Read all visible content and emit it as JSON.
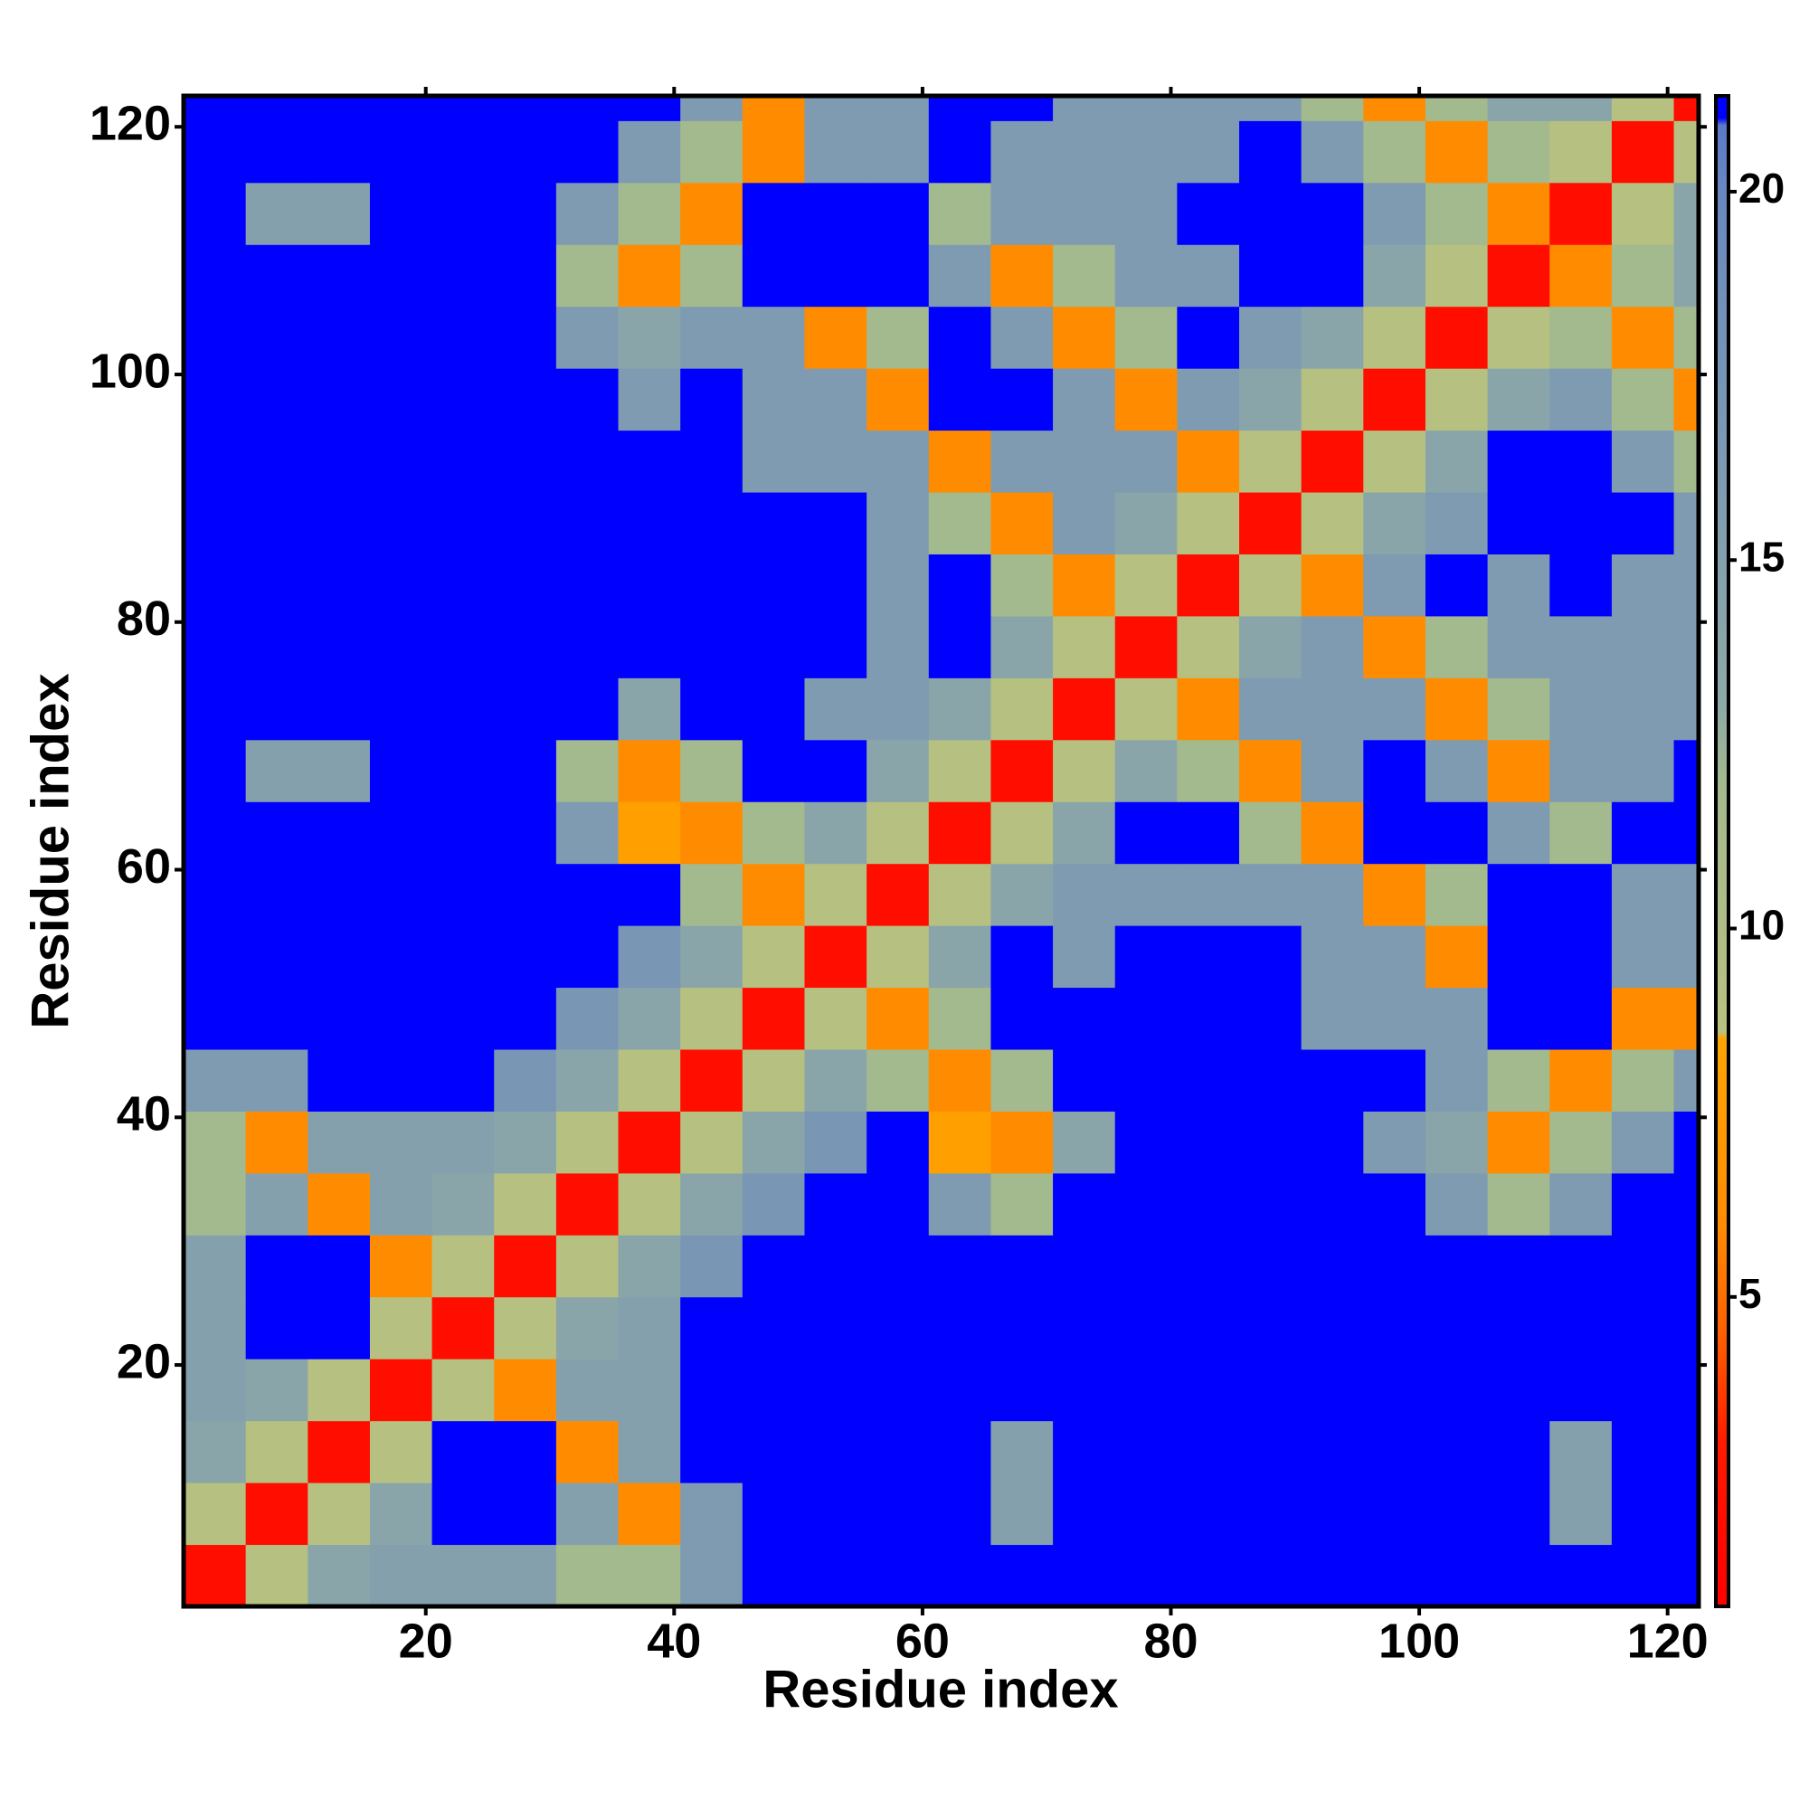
{
  "chart_data": {
    "type": "heatmap",
    "xlabel": "Residue index",
    "ylabel": "Residue index",
    "xlim": [
      0.5,
      122.5
    ],
    "ylim": [
      0.5,
      122.5
    ],
    "xticks": [
      20,
      40,
      60,
      80,
      100,
      120
    ],
    "yticks": [
      20,
      40,
      60,
      80,
      100,
      120
    ],
    "clim": [
      0.8,
      21.3
    ],
    "cticks": [
      5,
      10,
      15,
      20
    ],
    "colorscale": [
      [
        0.8,
        "#ff0000"
      ],
      [
        3,
        "#ff1a00"
      ],
      [
        4.5,
        "#ff6000"
      ],
      [
        6,
        "#ff8c00"
      ],
      [
        8.5,
        "#ffa500"
      ],
      [
        8.6,
        "#b9c27f"
      ],
      [
        12,
        "#a3b98e"
      ],
      [
        13,
        "#8eaaa6"
      ],
      [
        20,
        "#6a88c0"
      ],
      [
        20.9,
        "#5a7ac8"
      ],
      [
        21,
        "#0000ff"
      ]
    ],
    "x": [
      3,
      8,
      13,
      18,
      23,
      28,
      33,
      38,
      43,
      48,
      53,
      58,
      63,
      68,
      73,
      78,
      83,
      88,
      93,
      98,
      103,
      108,
      113,
      118,
      123
    ],
    "y": [
      3,
      8,
      13,
      18,
      23,
      28,
      33,
      38,
      43,
      48,
      53,
      58,
      63,
      68,
      73,
      78,
      83,
      88,
      93,
      98,
      103,
      108,
      113,
      118,
      123
    ],
    "values": [
      [
        2,
        9,
        14,
        15,
        15,
        15,
        12,
        12,
        16,
        21,
        21,
        21,
        21,
        21,
        21,
        21,
        21,
        21,
        21,
        21,
        21,
        21,
        21,
        21,
        21
      ],
      [
        9,
        2,
        9,
        14,
        21,
        21,
        15,
        6,
        16,
        21,
        21,
        21,
        21,
        15,
        21,
        21,
        21,
        21,
        21,
        21,
        21,
        21,
        15,
        21,
        21
      ],
      [
        14,
        9,
        2,
        9,
        21,
        21,
        6,
        15,
        21,
        21,
        21,
        21,
        21,
        15,
        21,
        21,
        21,
        21,
        21,
        21,
        21,
        21,
        15,
        21,
        21
      ],
      [
        15,
        14,
        9,
        2,
        9,
        6,
        15,
        15,
        21,
        21,
        21,
        21,
        21,
        21,
        21,
        21,
        21,
        21,
        21,
        21,
        21,
        21,
        21,
        21,
        21
      ],
      [
        15,
        21,
        21,
        9,
        2,
        9,
        14,
        15,
        21,
        21,
        21,
        21,
        21,
        21,
        21,
        21,
        21,
        21,
        21,
        21,
        21,
        21,
        21,
        21,
        21
      ],
      [
        15,
        21,
        21,
        6,
        9,
        2,
        9,
        14,
        17,
        21,
        21,
        21,
        21,
        21,
        21,
        21,
        21,
        21,
        21,
        21,
        21,
        21,
        21,
        21,
        21
      ],
      [
        12,
        15,
        6,
        15,
        14,
        9,
        2,
        9,
        14,
        17,
        21,
        21,
        16,
        12,
        21,
        21,
        21,
        21,
        21,
        21,
        16,
        12,
        16,
        21,
        21
      ],
      [
        12,
        6,
        15,
        15,
        15,
        14,
        9,
        2,
        9,
        14,
        17,
        21,
        8,
        6,
        14,
        21,
        21,
        21,
        21,
        16,
        14,
        6,
        12,
        16,
        21
      ],
      [
        16,
        16,
        21,
        21,
        21,
        17,
        14,
        9,
        2,
        9,
        14,
        12,
        6,
        12,
        21,
        21,
        21,
        21,
        21,
        21,
        16,
        12,
        6,
        12,
        16
      ],
      [
        21,
        21,
        21,
        21,
        21,
        21,
        17,
        14,
        9,
        2,
        9,
        6,
        12,
        21,
        21,
        21,
        21,
        21,
        16,
        16,
        16,
        21,
        21,
        6,
        6
      ],
      [
        21,
        21,
        21,
        21,
        21,
        21,
        21,
        17,
        14,
        9,
        2,
        9,
        14,
        21,
        16,
        21,
        21,
        21,
        16,
        16,
        6,
        21,
        21,
        16,
        16
      ],
      [
        21,
        21,
        21,
        21,
        21,
        21,
        21,
        21,
        12,
        6,
        9,
        2,
        9,
        14,
        16,
        16,
        16,
        16,
        16,
        6,
        12,
        21,
        21,
        16,
        16
      ],
      [
        21,
        21,
        21,
        21,
        21,
        21,
        16,
        8,
        6,
        12,
        14,
        9,
        2,
        9,
        14,
        21,
        21,
        12,
        6,
        21,
        21,
        16,
        12,
        21,
        21
      ],
      [
        21,
        15,
        15,
        21,
        21,
        21,
        12,
        6,
        12,
        21,
        21,
        14,
        9,
        2,
        9,
        14,
        12,
        6,
        16,
        21,
        16,
        6,
        16,
        16,
        21
      ],
      [
        21,
        21,
        21,
        21,
        21,
        21,
        21,
        14,
        21,
        21,
        16,
        16,
        14,
        9,
        2,
        9,
        6,
        16,
        16,
        16,
        6,
        12,
        16,
        16,
        16
      ],
      [
        21,
        21,
        21,
        21,
        21,
        21,
        21,
        21,
        21,
        21,
        21,
        16,
        21,
        14,
        9,
        2,
        9,
        14,
        16,
        6,
        12,
        16,
        16,
        16,
        16
      ],
      [
        21,
        21,
        21,
        21,
        21,
        21,
        21,
        21,
        21,
        21,
        21,
        16,
        21,
        12,
        6,
        9,
        2,
        9,
        6,
        16,
        21,
        16,
        21,
        16,
        16
      ],
      [
        21,
        21,
        21,
        21,
        21,
        21,
        21,
        21,
        21,
        21,
        21,
        16,
        12,
        6,
        16,
        14,
        9,
        2,
        9,
        14,
        16,
        21,
        21,
        21,
        16
      ],
      [
        21,
        21,
        21,
        21,
        21,
        21,
        21,
        21,
        21,
        16,
        16,
        16,
        6,
        16,
        16,
        16,
        6,
        9,
        2,
        9,
        14,
        21,
        21,
        16,
        12
      ],
      [
        21,
        21,
        21,
        21,
        21,
        21,
        21,
        16,
        21,
        16,
        16,
        6,
        21,
        21,
        16,
        6,
        16,
        14,
        9,
        2,
        9,
        14,
        16,
        12,
        6
      ],
      [
        21,
        21,
        21,
        21,
        21,
        21,
        16,
        14,
        16,
        16,
        6,
        12,
        21,
        16,
        6,
        12,
        21,
        16,
        14,
        9,
        2,
        9,
        12,
        6,
        12
      ],
      [
        21,
        21,
        21,
        21,
        21,
        21,
        12,
        6,
        12,
        21,
        21,
        21,
        16,
        6,
        12,
        16,
        16,
        21,
        21,
        14,
        9,
        2,
        6,
        12,
        14
      ],
      [
        21,
        15,
        15,
        21,
        21,
        21,
        16,
        12,
        6,
        21,
        21,
        21,
        12,
        16,
        16,
        16,
        21,
        21,
        21,
        16,
        12,
        6,
        2,
        9,
        14
      ],
      [
        21,
        21,
        21,
        21,
        21,
        21,
        21,
        16,
        12,
        6,
        16,
        16,
        21,
        16,
        16,
        16,
        16,
        21,
        16,
        12,
        6,
        12,
        9,
        2,
        9
      ],
      [
        21,
        21,
        21,
        21,
        21,
        21,
        21,
        21,
        16,
        6,
        16,
        16,
        21,
        21,
        16,
        16,
        16,
        16,
        12,
        6,
        12,
        14,
        14,
        9,
        2
      ]
    ]
  }
}
